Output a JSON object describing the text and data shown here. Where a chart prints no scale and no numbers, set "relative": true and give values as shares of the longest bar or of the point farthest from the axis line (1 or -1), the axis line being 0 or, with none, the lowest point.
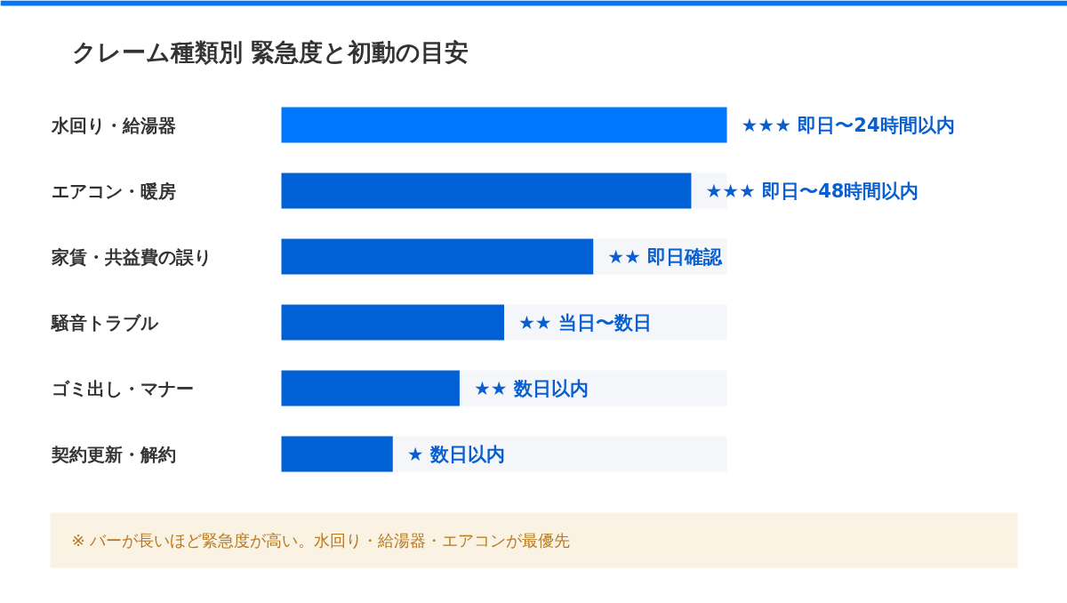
{
  "chart_data": {
    "type": "bar",
    "orientation": "horizontal",
    "relative": true,
    "title": "クレーム種類別 緊急度と初動の目安",
    "categories": [
      "水回り・給湯器",
      "エアコン・暖房",
      "家賃・共益費の誤り",
      "騒音トラブル",
      "ゴミ出し・マナー",
      "契約更新・解約"
    ],
    "values": [
      1.0,
      0.92,
      0.7,
      0.5,
      0.4,
      0.25
    ],
    "colors": [
      "#0077ff",
      "#0060d5",
      "#0060d5",
      "#0060d5",
      "#0060d5",
      "#0060d5"
    ],
    "annotations": [
      {
        "text": "★★★ 即日〜24時間以内",
        "x": 1.0,
        "y": "水回り・給湯器"
      },
      {
        "text": "★★★ 即日〜48時間以内",
        "x": 0.92,
        "y": "エアコン・暖房"
      },
      {
        "text": "★★ 即日確認",
        "x": 0.7,
        "y": "家賃・共益費の誤り"
      },
      {
        "text": "★★ 当日〜数日",
        "x": 0.5,
        "y": "騒音トラブル"
      },
      {
        "text": "★★ 数日以内",
        "x": 0.4,
        "y": "ゴミ出し・マナー"
      },
      {
        "text": "★ 数日以内",
        "x": 0.25,
        "y": "契約更新・解約"
      },
      "※ バーが長いほど緊急度が高い。水回り・給湯器・エアコンが最優先"
    ]
  }
}
